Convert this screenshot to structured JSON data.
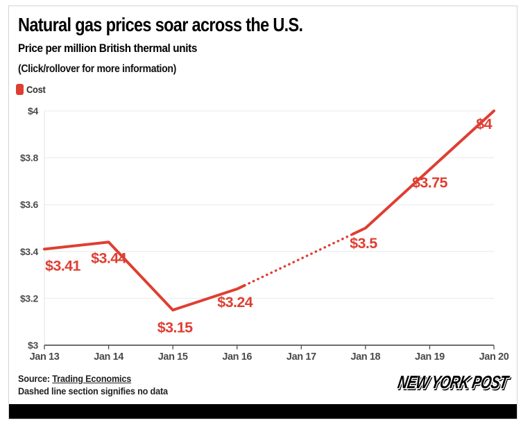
{
  "header": {
    "title": "Natural gas prices soar across the U.S.",
    "subtitle": "Price per million British thermal units",
    "note": "(Click/rollover for more information)"
  },
  "legend": {
    "items": [
      {
        "label": "Cost",
        "color": "#df3e32"
      }
    ]
  },
  "chart_data": {
    "type": "line",
    "title": "Natural gas prices soar across the U.S.",
    "subtitle": "Price per million British thermal units",
    "categories": [
      "Jan 13",
      "Jan 14",
      "Jan 15",
      "Jan 16",
      "Jan 17",
      "Jan 18",
      "Jan 19",
      "Jan 20"
    ],
    "series": [
      {
        "name": "Cost",
        "values": [
          3.41,
          3.44,
          3.15,
          3.24,
          null,
          3.5,
          3.75,
          4.0
        ],
        "point_labels": [
          "$3.41",
          "$3.44",
          "$3.15",
          "$3.24",
          "",
          "$3.5",
          "$3.75",
          "$4"
        ]
      }
    ],
    "dashed_segment": {
      "from": "Jan 16",
      "to": "Jan 18",
      "meaning": "no data"
    },
    "ylim": [
      3,
      4
    ],
    "ytick_values": [
      3,
      3.2,
      3.4,
      3.6,
      3.8,
      4
    ],
    "ytick_labels": [
      "$3",
      "$3.2",
      "$3.4",
      "$3.6",
      "$3.8",
      "$4"
    ],
    "xlabel": "",
    "ylabel": "",
    "grid": "horizontal",
    "legend_position": "top-left",
    "line_color": "#df3e32"
  },
  "footer": {
    "source_prefix": "Source: ",
    "source_link": "Trading Economics",
    "note": "Dashed line section signifies no data",
    "brand": "NEW YORK POST"
  },
  "colors": {
    "accent_red": "#df3e32",
    "axis_text": "#4d4d4d",
    "gridline": "#e9e9e9",
    "axis_line": "#161616",
    "card_border": "#d4d4d4",
    "bottom_bar": "#000000"
  }
}
